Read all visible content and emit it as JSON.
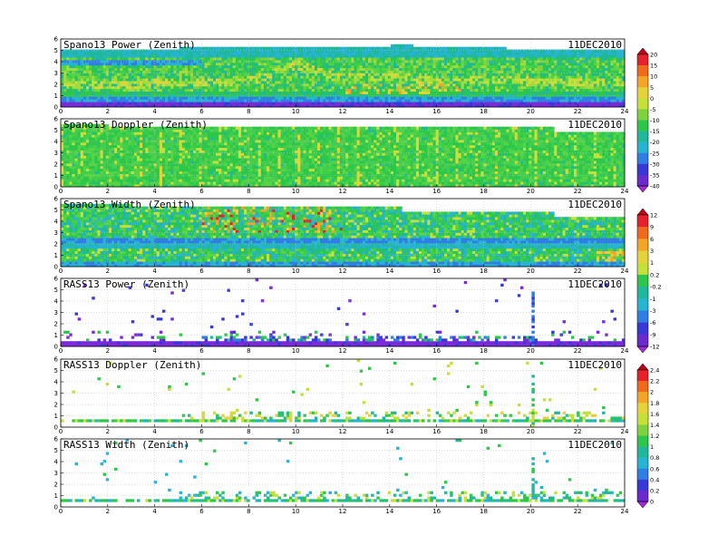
{
  "chart_data": [
    {
      "type": "heatmap",
      "title": "Spano13 Power (Zenith)",
      "date": "11DEC2010",
      "x_ticks": [
        "0",
        "2",
        "4",
        "6",
        "8",
        "10",
        "12",
        "14",
        "16",
        "18",
        "20",
        "22",
        "24"
      ],
      "y_ticks": [
        "0",
        "1",
        "2",
        "3",
        "4",
        "5",
        "6"
      ],
      "xlim": [
        0,
        24
      ],
      "ylim": [
        0,
        6
      ],
      "colorbar": "power",
      "style": "dense-power",
      "grid": true
    },
    {
      "type": "heatmap",
      "title": "Spano13 Doppler (Zenith)",
      "date": "11DEC2010",
      "x_ticks": [
        "0",
        "2",
        "4",
        "6",
        "8",
        "10",
        "12",
        "14",
        "16",
        "18",
        "20",
        "22",
        "24"
      ],
      "y_ticks": [
        "0",
        "1",
        "2",
        "3",
        "4",
        "5",
        "6"
      ],
      "xlim": [
        0,
        24
      ],
      "ylim": [
        0,
        6
      ],
      "colorbar": "power",
      "style": "dense-doppler",
      "grid": true
    },
    {
      "type": "heatmap",
      "title": "Spano13 Width (Zenith)",
      "date": "11DEC2010",
      "x_ticks": [
        "0",
        "2",
        "4",
        "6",
        "8",
        "10",
        "12",
        "14",
        "16",
        "18",
        "20",
        "22",
        "24"
      ],
      "y_ticks": [
        "0",
        "1",
        "2",
        "3",
        "4",
        "5",
        "6"
      ],
      "xlim": [
        0,
        24
      ],
      "ylim": [
        0,
        6
      ],
      "colorbar": "doppler",
      "style": "dense-width",
      "grid": true
    },
    {
      "type": "heatmap",
      "title": "RASS13 Power (Zenith)",
      "date": "11DEC2010",
      "x_ticks": [
        "0",
        "2",
        "4",
        "6",
        "8",
        "10",
        "12",
        "14",
        "16",
        "18",
        "20",
        "22",
        "24"
      ],
      "y_ticks": [
        "0",
        "1",
        "2",
        "3",
        "4",
        "5",
        "6"
      ],
      "xlim": [
        0,
        24
      ],
      "ylim": [
        0,
        6
      ],
      "colorbar": "doppler",
      "style": "rass-power",
      "spike_x": 20.1,
      "grid": true
    },
    {
      "type": "heatmap",
      "title": "RASS13 Doppler (Zenith)",
      "date": "11DEC2010",
      "x_ticks": [
        "0",
        "2",
        "4",
        "6",
        "8",
        "10",
        "12",
        "14",
        "16",
        "18",
        "20",
        "22",
        "24"
      ],
      "y_ticks": [
        "0",
        "1",
        "2",
        "3",
        "4",
        "5",
        "6"
      ],
      "xlim": [
        0,
        24
      ],
      "ylim": [
        0,
        6
      ],
      "colorbar": "width",
      "style": "rass-doppler",
      "spike_x": 20.1,
      "grid": true
    },
    {
      "type": "heatmap",
      "title": "RASS13 Width (Zenith)",
      "date": "11DEC2010",
      "x_ticks": [
        "0",
        "2",
        "4",
        "6",
        "8",
        "10",
        "12",
        "14",
        "16",
        "18",
        "20",
        "22",
        "24"
      ],
      "y_ticks": [
        "0",
        "1",
        "2",
        "3",
        "4",
        "5",
        "6"
      ],
      "xlim": [
        0,
        24
      ],
      "ylim": [
        0,
        6
      ],
      "colorbar": "width",
      "style": "rass-width",
      "spike_x": 20.1,
      "grid": true
    }
  ],
  "colorbars": {
    "power": {
      "labels": [
        "20",
        "15",
        "10",
        "5",
        "0",
        "-5",
        "-10",
        "-15",
        "-20",
        "-25",
        "-30",
        "-35",
        "-40"
      ],
      "colors": [
        "#c0001a",
        "#e8202a",
        "#f06a1c",
        "#f4a428",
        "#e6d23a",
        "#c6e03a",
        "#7ed23e",
        "#2cc74a",
        "#1fb89a",
        "#26b4d2",
        "#2f7ee6",
        "#3838d8",
        "#6a2ad0",
        "#a02ad8"
      ]
    },
    "doppler": {
      "labels": [
        "12",
        "9",
        "6",
        "3",
        "1",
        "0.2",
        "-0.2",
        "-1",
        "-3",
        "-6",
        "-9",
        "-12"
      ],
      "colors": [
        "#c0001a",
        "#e8202a",
        "#f06a1c",
        "#f4a428",
        "#e6d23a",
        "#c6e03a",
        "#2cc74a",
        "#1fb89a",
        "#26b4d2",
        "#2f7ee6",
        "#3838d8",
        "#6a2ad0",
        "#a02ad8"
      ]
    },
    "width": {
      "labels": [
        "2.4",
        "2.2",
        "2",
        "1.8",
        "1.6",
        "1.4",
        "1.2",
        "1",
        "0.8",
        "0.6",
        "0.4",
        "0.2",
        "0"
      ],
      "colors": [
        "#c0001a",
        "#e8202a",
        "#f06a1c",
        "#f4a428",
        "#e6d23a",
        "#c6e03a",
        "#7ed23e",
        "#2cc74a",
        "#1fb89a",
        "#26b4d2",
        "#2f7ee6",
        "#3838d8",
        "#6a2ad0",
        "#a02ad8"
      ]
    }
  }
}
